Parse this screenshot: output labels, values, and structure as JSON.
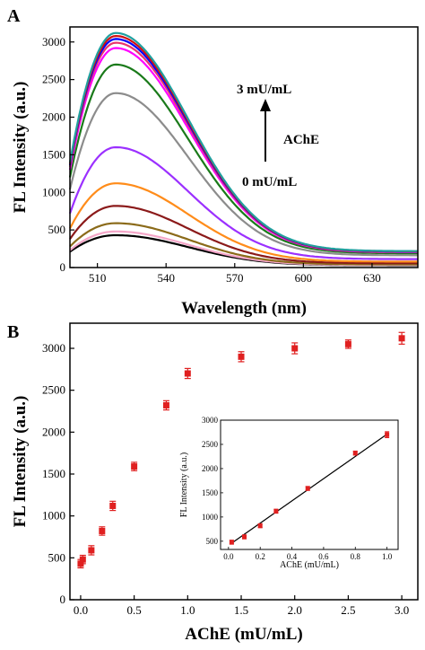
{
  "chart_data": [
    {
      "type": "line",
      "panel_label": "A",
      "xlabel": "Wavelength (nm)",
      "ylabel": "FL Intensity (a.u.)",
      "xlim": [
        498,
        650
      ],
      "ylim": [
        0,
        3200
      ],
      "xticks": [
        510,
        540,
        570,
        600,
        630
      ],
      "yticks": [
        0,
        500,
        1000,
        1500,
        2000,
        2500,
        3000
      ],
      "peak_wavelength": 518,
      "tail_fraction": 0.07,
      "series": [
        {
          "color": "#000000",
          "peak": 430,
          "start": 210
        },
        {
          "color": "#f4a6c8",
          "peak": 480,
          "start": 230
        },
        {
          "color": "#8b6b1a",
          "peak": 590,
          "start": 280
        },
        {
          "color": "#8b1a1a",
          "peak": 820,
          "start": 380
        },
        {
          "color": "#ff8c1a",
          "peak": 1120,
          "start": 520
        },
        {
          "color": "#9b30ff",
          "peak": 1600,
          "start": 720
        },
        {
          "color": "#8c8c8c",
          "peak": 2320,
          "start": 1040
        },
        {
          "color": "#1a7a1a",
          "peak": 2700,
          "start": 1200
        },
        {
          "color": "#ff00ff",
          "peak": 2920,
          "start": 1300
        },
        {
          "color": "#e8356e",
          "peak": 2990,
          "start": 1340
        },
        {
          "color": "#0000ff",
          "peak": 3040,
          "start": 1360
        },
        {
          "color": "#d01010",
          "peak": 3080,
          "start": 1380
        },
        {
          "color": "#20a0a0",
          "peak": 3120,
          "start": 1400
        }
      ],
      "annotations": {
        "top": "3 mU/mL",
        "middle": "AChE",
        "bottom": "0 mU/mL"
      }
    },
    {
      "type": "scatter",
      "panel_label": "B",
      "xlabel": "AChE (mU/mL)",
      "ylabel": "FL Intensity (a.u.)",
      "xlim": [
        -0.1,
        3.15
      ],
      "ylim": [
        0,
        3300
      ],
      "xticks": [
        "0.0",
        "0.5",
        "1.0",
        "1.5",
        "2.0",
        "2.5",
        "3.0"
      ],
      "yticks": [
        0,
        500,
        1000,
        1500,
        2000,
        2500,
        3000
      ],
      "marker_color": "#e02020",
      "x": [
        0.0,
        0.02,
        0.1,
        0.2,
        0.3,
        0.5,
        0.8,
        1.0,
        1.5,
        2.0,
        2.5,
        3.0
      ],
      "y": [
        430,
        480,
        590,
        820,
        1120,
        1590,
        2320,
        2700,
        2900,
        3000,
        3050,
        3120
      ],
      "err": [
        50,
        50,
        55,
        50,
        55,
        50,
        55,
        60,
        60,
        65,
        50,
        70
      ],
      "inset": {
        "xlabel": "AChE (mU/mL)",
        "ylabel": "FL Intensity (a.u.)",
        "xlim": [
          -0.05,
          1.07
        ],
        "ylim": [
          330,
          3000
        ],
        "xticks": [
          "0.0",
          "0.2",
          "0.4",
          "0.6",
          "0.8",
          "1.0"
        ],
        "yticks": [
          500,
          1000,
          1500,
          2000,
          2500,
          3000
        ],
        "x": [
          0.02,
          0.1,
          0.2,
          0.3,
          0.5,
          0.8,
          1.0
        ],
        "y": [
          480,
          590,
          820,
          1120,
          1590,
          2320,
          2700
        ],
        "err": [
          40,
          40,
          40,
          40,
          40,
          40,
          60
        ],
        "fit": [
          0.02,
          460,
          1.0,
          2710
        ]
      }
    }
  ]
}
